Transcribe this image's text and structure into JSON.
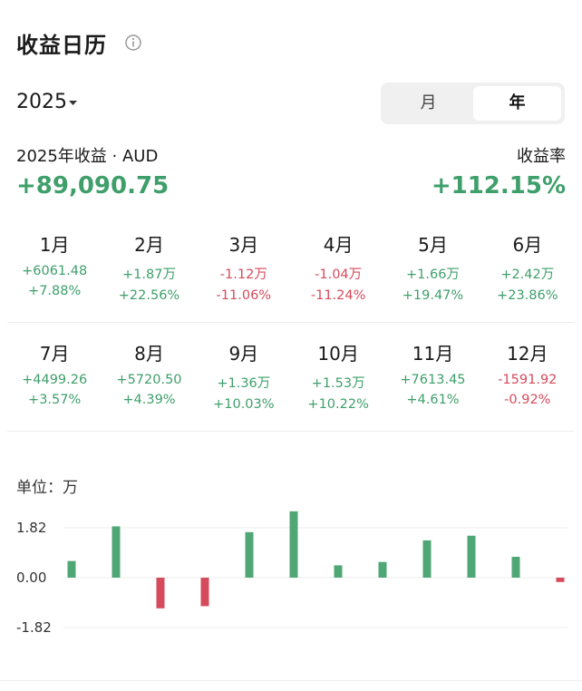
{
  "header": {
    "title": "收益日历",
    "year": "2025",
    "tabs": [
      "月",
      "年"
    ]
  },
  "summary": {
    "label": "2025年收益 · AUD",
    "amount": "+89,090.75",
    "rate_label": "收益率",
    "rate": "+112.15%"
  },
  "months": [
    {
      "month": "1月",
      "profit": "+6061.48",
      "rate": "+7.88%"
    },
    {
      "month": "2月",
      "profit": "+1.87万",
      "rate": "+22.56%"
    },
    {
      "month": "3月",
      "profit": "-1.12万",
      "rate": "-11.06%"
    },
    {
      "month": "4月",
      "profit": "-1.04万",
      "rate": "-11.24%"
    },
    {
      "month": "5月",
      "profit": "+1.66万",
      "rate": "+19.47%"
    },
    {
      "month": "6月",
      "profit": "+2.42万",
      "rate": "+23.86%"
    },
    {
      "month": "7月",
      "profit": "+4499.26",
      "rate": "+3.57%"
    },
    {
      "month": "8月",
      "profit": "+5720.50",
      "rate": "+4.39%"
    },
    {
      "month": "9月",
      "profit": "+1.36万",
      "rate": "+10.03%"
    },
    {
      "month": "10月",
      "profit": "+1.53万",
      "rate": "+10.22%"
    },
    {
      "month": "11月",
      "profit": "+7613.45",
      "rate": "+4.61%"
    },
    {
      "month": "12月",
      "profit": "-1591.92",
      "rate": "-0.92%"
    }
  ],
  "unit_label": "单位：万",
  "chart_data": {
    "type": "bar",
    "categories": [
      null,
      null,
      null,
      null,
      null,
      null,
      null,
      null,
      null,
      null,
      null,
      null
    ],
    "values": [
      0.606148,
      1.87,
      -1.12,
      -1.04,
      1.66,
      2.42,
      0.449926,
      0.57205,
      1.36,
      1.53,
      0.761345,
      -0.159192
    ],
    "color_positive": "#4fa775",
    "color_negative": "#d64b5c",
    "ylim": [
      -2.1,
      2.6
    ],
    "yticks": [
      1.82,
      {
        "value": 0,
        "label": "0.00"
      },
      -1.82
    ],
    "grid": true
  }
}
